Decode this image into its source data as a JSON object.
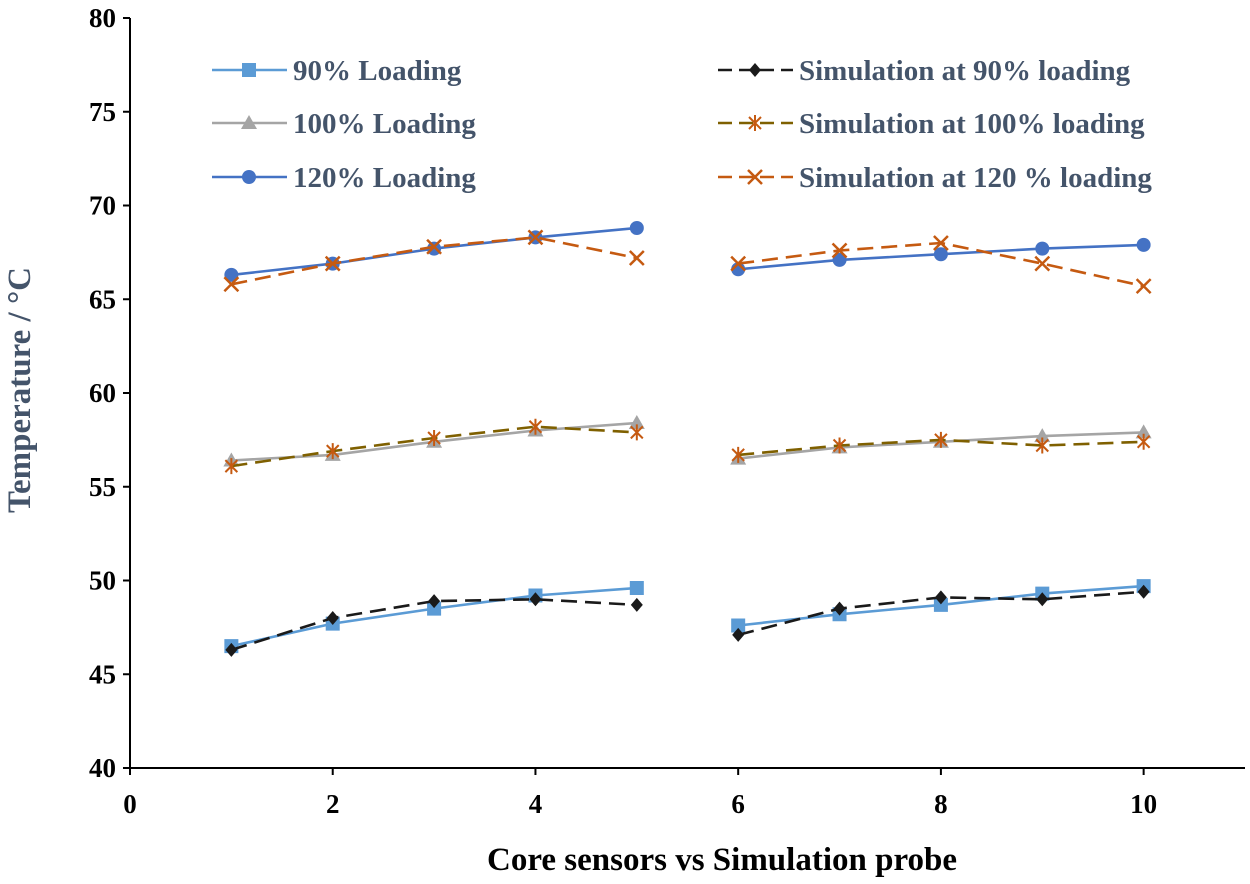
{
  "chart_data": {
    "type": "line",
    "title": "",
    "xlabel": "Core sensors vs Simulation probe",
    "ylabel": "Temperature / °C",
    "xlim": [
      0,
      11
    ],
    "ylim": [
      40,
      80
    ],
    "xticks": [
      0,
      2,
      4,
      6,
      8,
      10
    ],
    "yticks": [
      40,
      45,
      50,
      55,
      60,
      65,
      70,
      75,
      80
    ],
    "grid": false,
    "legend_position": "top",
    "colors": {
      "axis": "#000000",
      "ylabel": "#44546A",
      "legend_text": "#44546A"
    },
    "series": [
      {
        "name": "90% Loading",
        "color": "#5B9BD5",
        "marker": "square",
        "dash": "solid",
        "segments": [
          {
            "x": [
              1,
              2,
              3,
              4,
              5
            ],
            "y": [
              46.5,
              47.7,
              48.5,
              49.2,
              49.6
            ]
          },
          {
            "x": [
              6,
              7,
              8,
              9,
              10
            ],
            "y": [
              47.6,
              48.2,
              48.7,
              49.3,
              49.7
            ]
          }
        ]
      },
      {
        "name": "100% Loading",
        "color": "#A5A5A5",
        "marker": "triangle",
        "dash": "solid",
        "segments": [
          {
            "x": [
              1,
              2,
              3,
              4,
              5
            ],
            "y": [
              56.4,
              56.7,
              57.4,
              58.0,
              58.4
            ]
          },
          {
            "x": [
              6,
              7,
              8,
              9,
              10
            ],
            "y": [
              56.5,
              57.1,
              57.4,
              57.7,
              57.9
            ]
          }
        ]
      },
      {
        "name": "120% Loading",
        "color": "#4472C4",
        "marker": "circle",
        "dash": "solid",
        "segments": [
          {
            "x": [
              1,
              2,
              3,
              4,
              5
            ],
            "y": [
              66.3,
              66.9,
              67.7,
              68.3,
              68.8
            ]
          },
          {
            "x": [
              6,
              7,
              8,
              9,
              10
            ],
            "y": [
              66.6,
              67.1,
              67.4,
              67.7,
              67.9
            ]
          }
        ]
      },
      {
        "name": "Simulation at 90% loading",
        "color": "#1A1A1A",
        "marker": "diamond",
        "dash": "dashed",
        "segments": [
          {
            "x": [
              1,
              2,
              3,
              4,
              5
            ],
            "y": [
              46.3,
              48.0,
              48.9,
              49.0,
              48.7
            ]
          },
          {
            "x": [
              6,
              7,
              8,
              9,
              10
            ],
            "y": [
              47.1,
              48.5,
              49.1,
              49.0,
              49.4
            ]
          }
        ]
      },
      {
        "name": "Simulation at 100% loading",
        "color": "#7F6000",
        "marker": "star",
        "dash": "dashed",
        "marker_color": "#C55A11",
        "segments": [
          {
            "x": [
              1,
              2,
              3,
              4,
              5
            ],
            "y": [
              56.1,
              56.9,
              57.6,
              58.2,
              57.9
            ]
          },
          {
            "x": [
              6,
              7,
              8,
              9,
              10
            ],
            "y": [
              56.7,
              57.2,
              57.5,
              57.2,
              57.4
            ]
          }
        ]
      },
      {
        "name": "Simulation at 120 % loading",
        "color": "#C55A11",
        "marker": "x",
        "dash": "dashed",
        "segments": [
          {
            "x": [
              1,
              2,
              3,
              4,
              5
            ],
            "y": [
              65.8,
              66.9,
              67.8,
              68.3,
              67.2
            ]
          },
          {
            "x": [
              6,
              7,
              8,
              9,
              10
            ],
            "y": [
              66.9,
              67.6,
              68.0,
              66.9,
              65.7
            ]
          }
        ]
      }
    ]
  }
}
